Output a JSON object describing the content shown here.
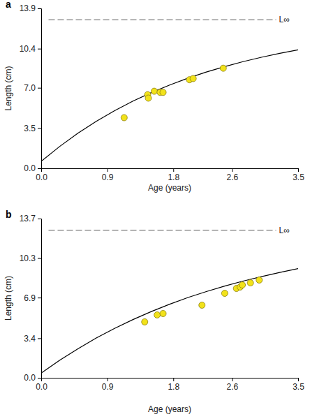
{
  "chart_data": [
    {
      "type": "scatter",
      "title": "a",
      "x_label": "Age (years)",
      "y_label": "Length (cm)",
      "xlim": [
        0,
        3.5
      ],
      "ylim": [
        0,
        13.9
      ],
      "xticks": [
        {
          "value": 0,
          "label": "0.0"
        },
        0.9,
        1.8,
        2.6,
        3.5
      ],
      "yticks": [
        {
          "value": 0,
          "label": "0.0"
        },
        3.5,
        {
          "value": 7,
          "label": "7.0"
        },
        10.4,
        13.9
      ],
      "series": [
        {
          "type": "scatter",
          "marker": "circle",
          "color": "#f2e21a",
          "x": [
            1.13,
            1.45,
            1.46,
            1.54,
            1.62,
            1.66,
            2.02,
            2.07,
            2.48
          ],
          "values": [
            4.4,
            6.4,
            6.1,
            6.7,
            6.6,
            6.6,
            7.7,
            7.8,
            8.7
          ]
        },
        {
          "type": "line",
          "line_style": "solid",
          "color": "#000000",
          "x": [
            0,
            0.25,
            0.5,
            0.75,
            1.0,
            1.25,
            1.5,
            1.75,
            2.0,
            2.25,
            2.5,
            2.75,
            3.0,
            3.25,
            3.5
          ],
          "values": [
            0.6,
            1.89,
            3.05,
            4.08,
            5.01,
            5.84,
            6.58,
            7.24,
            7.84,
            8.37,
            8.84,
            9.27,
            9.65,
            9.99,
            10.3
          ]
        },
        {
          "type": "line",
          "name": "L∞",
          "line_style": "dashed",
          "color": "#555555",
          "x": [
            0.1,
            3.2
          ],
          "values": [
            12.9,
            12.9
          ]
        }
      ]
    },
    {
      "type": "scatter",
      "title": "b",
      "x_label": "Age (years)",
      "y_label": "Length (cm)",
      "xlim": [
        0,
        3.5
      ],
      "ylim": [
        0,
        13.7
      ],
      "xticks": [
        {
          "value": 0,
          "label": "0.0"
        },
        0.9,
        1.8,
        2.6,
        3.5
      ],
      "yticks": [
        {
          "value": 0,
          "label": "0.0"
        },
        3.4,
        6.9,
        10.3,
        13.7
      ],
      "series": [
        {
          "type": "scatter",
          "marker": "circle",
          "color": "#f2e21a",
          "x": [
            1.41,
            1.58,
            1.66,
            2.19,
            2.5,
            2.66,
            2.71,
            2.74,
            2.85,
            2.97
          ],
          "values": [
            4.81,
            5.41,
            5.53,
            6.25,
            7.27,
            7.69,
            7.81,
            7.99,
            8.17,
            8.41
          ]
        },
        {
          "type": "line",
          "line_style": "solid",
          "color": "#000000",
          "x": [
            0,
            0.25,
            0.5,
            0.75,
            1.0,
            1.25,
            1.5,
            1.75,
            2.0,
            2.25,
            2.5,
            2.75,
            3.0,
            3.25,
            3.5
          ],
          "values": [
            0.4,
            1.5,
            2.5,
            3.43,
            4.25,
            5.01,
            5.7,
            6.33,
            6.91,
            7.42,
            7.89,
            8.32,
            8.71,
            9.07,
            9.4
          ]
        },
        {
          "type": "line",
          "name": "L∞",
          "line_style": "dashed",
          "color": "#555555",
          "x": [
            0.1,
            3.2
          ],
          "values": [
            12.7,
            12.7
          ]
        }
      ]
    }
  ]
}
